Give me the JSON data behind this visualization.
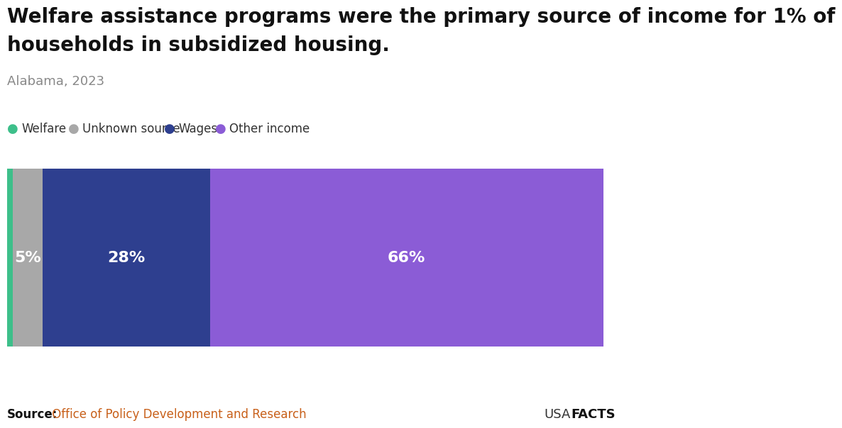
{
  "title_line1": "Welfare assistance programs were the primary source of income for 1% of",
  "title_line2": "households in subsidized housing.",
  "subtitle": "Alabama, 2023",
  "categories": [
    "Welfare",
    "Unknown source",
    "Wages",
    "Other income"
  ],
  "values": [
    1,
    5,
    28,
    66
  ],
  "colors": [
    "#3dbf8a",
    "#a8a8a8",
    "#2e3f8f",
    "#8b5cd6"
  ],
  "bar_labels": [
    "",
    "5%",
    "28%",
    "66%"
  ],
  "source_bold": "Source:",
  "source_text": " Office of Policy Development and Research",
  "source_text_color": "#c8601a",
  "background_color": "#ffffff",
  "title_fontsize": 20,
  "subtitle_fontsize": 13,
  "legend_fontsize": 12,
  "bar_label_fontsize": 16,
  "source_fontsize": 12
}
